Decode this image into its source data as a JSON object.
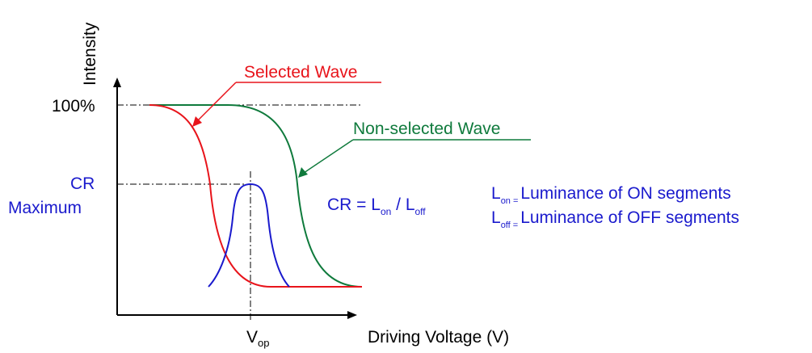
{
  "colors": {
    "axis": "#000000",
    "selected": "#e8141b",
    "non_selected": "#0f7a3c",
    "cr": "#1a1acd",
    "guide": "#000000"
  },
  "axes": {
    "y_label": "Intensity",
    "x_label": "Driving Voltage (V)",
    "y_tick_100": "100%",
    "vop_main": "V",
    "vop_sub": "op"
  },
  "labels": {
    "selected_wave": "Selected Wave",
    "non_selected_wave": "Non-selected Wave",
    "cr_line1": "CR",
    "cr_line2": "Maximum"
  },
  "formula": {
    "lhs": "CR = L",
    "on_sub": "on",
    "slash": " / L",
    "off_sub": "off"
  },
  "legend": {
    "on_main": "L",
    "on_sub": "on =",
    "on_text": "Luminance of ON segments",
    "off_main": "L",
    "off_sub": "off =",
    "off_text": "Luminance of OFF segments"
  }
}
